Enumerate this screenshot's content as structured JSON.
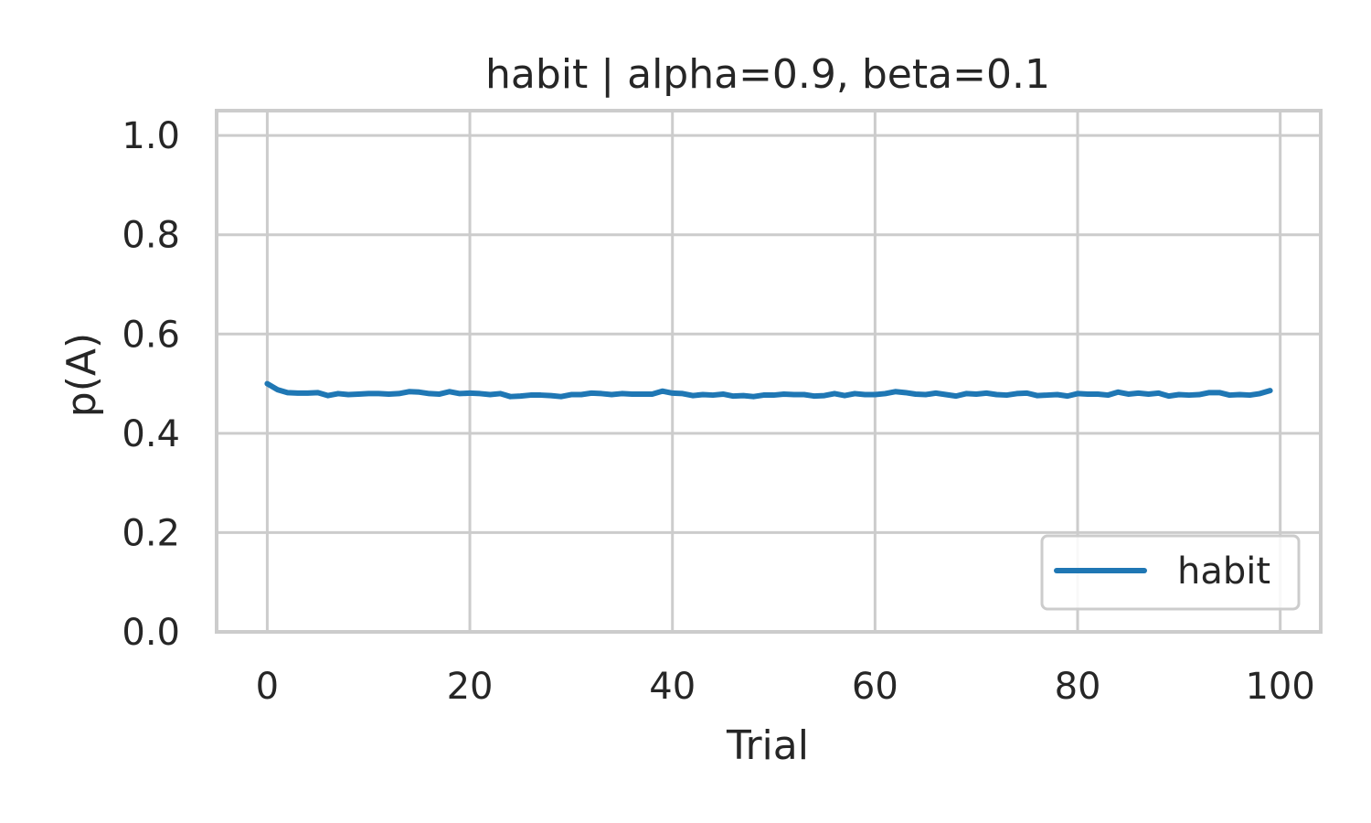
{
  "chart_data": {
    "type": "line",
    "title": "habit | alpha=0.9, beta=0.1",
    "xlabel": "Trial",
    "ylabel": "p(A)",
    "xlim": [
      -5,
      104
    ],
    "ylim": [
      0.0,
      1.05
    ],
    "xticks": [
      0,
      20,
      40,
      60,
      80,
      100
    ],
    "yticks": [
      0.0,
      0.2,
      0.4,
      0.6,
      0.8,
      1.0
    ],
    "xtick_labels": [
      "0",
      "20",
      "40",
      "60",
      "80",
      "100"
    ],
    "ytick_labels": [
      "0.0",
      "0.2",
      "0.4",
      "0.6",
      "0.8",
      "1.0"
    ],
    "grid": true,
    "legend_position": "lower-right",
    "series": [
      {
        "name": "habit",
        "color": "#1f77b4",
        "x": [
          0,
          1,
          2,
          3,
          4,
          5,
          6,
          7,
          8,
          9,
          10,
          11,
          12,
          13,
          14,
          15,
          16,
          17,
          18,
          19,
          20,
          21,
          22,
          23,
          24,
          25,
          26,
          27,
          28,
          29,
          30,
          31,
          32,
          33,
          34,
          35,
          36,
          37,
          38,
          39,
          40,
          41,
          42,
          43,
          44,
          45,
          46,
          47,
          48,
          49,
          50,
          51,
          52,
          53,
          54,
          55,
          56,
          57,
          58,
          59,
          60,
          61,
          62,
          63,
          64,
          65,
          66,
          67,
          68,
          69,
          70,
          71,
          72,
          73,
          74,
          75,
          76,
          77,
          78,
          79,
          80,
          81,
          82,
          83,
          84,
          85,
          86,
          87,
          88,
          89,
          90,
          91,
          92,
          93,
          94,
          95,
          96,
          97,
          98,
          99
        ],
        "values": [
          0.5,
          0.488,
          0.482,
          0.481,
          0.481,
          0.482,
          0.476,
          0.48,
          0.478,
          0.479,
          0.48,
          0.48,
          0.479,
          0.48,
          0.484,
          0.483,
          0.48,
          0.479,
          0.484,
          0.48,
          0.481,
          0.48,
          0.478,
          0.48,
          0.474,
          0.475,
          0.477,
          0.477,
          0.476,
          0.474,
          0.478,
          0.478,
          0.481,
          0.48,
          0.478,
          0.48,
          0.479,
          0.479,
          0.479,
          0.485,
          0.481,
          0.48,
          0.476,
          0.478,
          0.477,
          0.479,
          0.475,
          0.476,
          0.474,
          0.477,
          0.477,
          0.479,
          0.478,
          0.478,
          0.475,
          0.476,
          0.48,
          0.476,
          0.48,
          0.478,
          0.478,
          0.48,
          0.484,
          0.482,
          0.479,
          0.478,
          0.481,
          0.478,
          0.475,
          0.48,
          0.479,
          0.481,
          0.478,
          0.477,
          0.48,
          0.481,
          0.476,
          0.477,
          0.478,
          0.475,
          0.48,
          0.479,
          0.479,
          0.477,
          0.483,
          0.479,
          0.481,
          0.479,
          0.481,
          0.475,
          0.478,
          0.477,
          0.478,
          0.482,
          0.482,
          0.477,
          0.478,
          0.477,
          0.48,
          0.486
        ]
      }
    ]
  }
}
